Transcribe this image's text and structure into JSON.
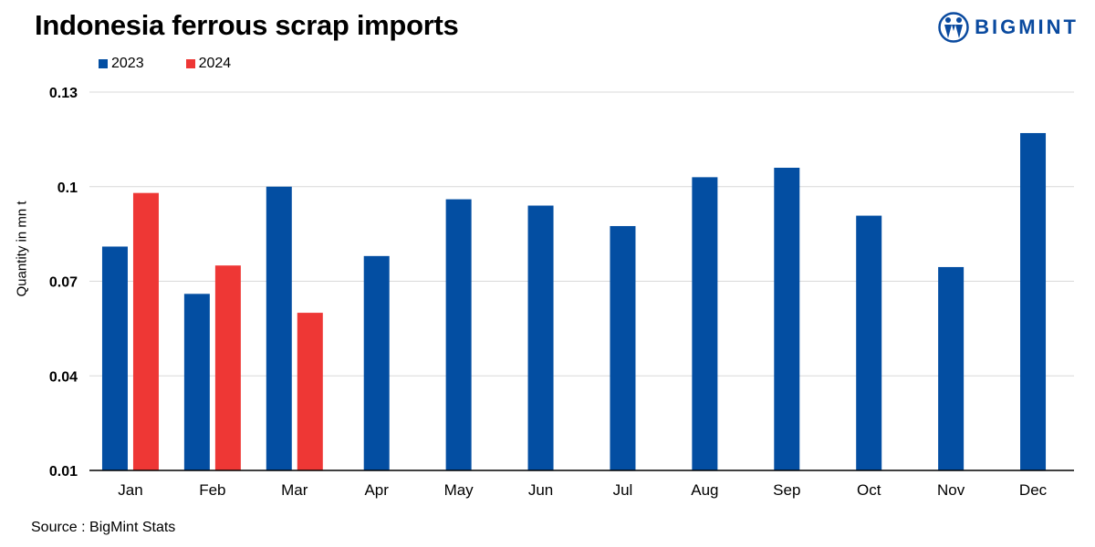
{
  "header": {
    "title": "Indonesia ferrous scrap imports",
    "logo_text": "BIGMINT"
  },
  "footer": {
    "source": "Source : BigMint Stats"
  },
  "colors": {
    "series_2023": "#034ea2",
    "series_2024": "#ee3735",
    "logo": "#0a4a9f",
    "grid": "#d9d9d9",
    "axis": "#000000"
  },
  "chart_data": {
    "type": "bar",
    "title": "Indonesia ferrous scrap imports",
    "ylabel": "Quantity in mn t",
    "xlabel": "",
    "ylim": [
      0.01,
      0.13
    ],
    "yticks": [
      "0.01",
      "0.04",
      "0.07",
      "0.1",
      "0.13"
    ],
    "grid": true,
    "legend_position": "top-left",
    "categories": [
      "Jan",
      "Feb",
      "Mar",
      "Apr",
      "May",
      "Jun",
      "Jul",
      "Aug",
      "Sep",
      "Oct",
      "Nov",
      "Dec"
    ],
    "series": [
      {
        "name": "2023",
        "color": "#034ea2",
        "values": [
          0.081,
          0.066,
          0.1,
          0.078,
          0.096,
          0.094,
          0.0875,
          0.103,
          0.106,
          0.0908,
          0.0745,
          0.117
        ]
      },
      {
        "name": "2024",
        "color": "#ee3735",
        "values": [
          0.098,
          0.075,
          0.06,
          null,
          null,
          null,
          null,
          null,
          null,
          null,
          null,
          null
        ]
      }
    ]
  }
}
